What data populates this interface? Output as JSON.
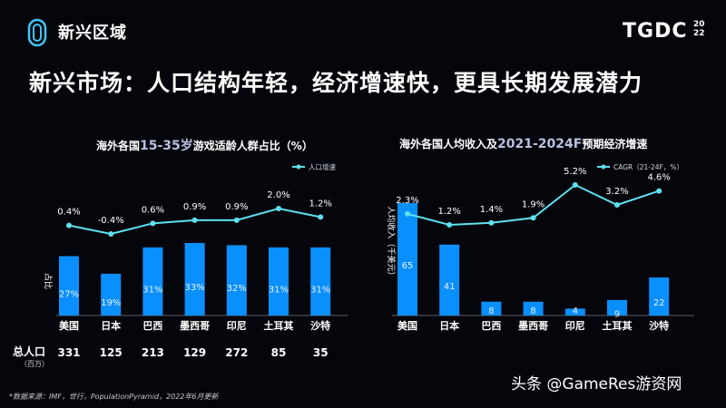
{
  "header": {
    "section_title": "新兴区域",
    "brand": "TGDC",
    "brand_year_top": "20",
    "brand_year_bottom": "22",
    "headline": "新兴市场：人口结构年轻，经济增速快，更具长期发展潜力"
  },
  "colors": {
    "bar": "#0a8fff",
    "line": "#5ee1ef",
    "background": "#05060c"
  },
  "chart_data": [
    {
      "type": "bar",
      "title_prefix": "海外各国",
      "title_highlight": "15-35岁",
      "title_suffix": "游戏适龄人群占比（%）",
      "ylabel": "占比",
      "categories": [
        "美国",
        "日本",
        "巴西",
        "墨西哥",
        "印尼",
        "土耳其",
        "沙特"
      ],
      "series": [
        {
          "name": "占比",
          "values": [
            27,
            19,
            31,
            33,
            32,
            31,
            31
          ],
          "value_labels": [
            "27%",
            "19%",
            "31%",
            "33%",
            "32%",
            "31%",
            "31%"
          ]
        },
        {
          "name": "人口增速",
          "type": "line",
          "values": [
            0.4,
            -0.4,
            0.6,
            0.9,
            0.9,
            2.0,
            1.2
          ],
          "value_labels": [
            "0.4%",
            "-0.4%",
            "0.6%",
            "0.9%",
            "0.9%",
            "2.0%",
            "1.2%"
          ]
        }
      ],
      "legend": "人口增速",
      "population_label": "总人口",
      "population_unit": "（百万）",
      "population": [
        "331",
        "125",
        "213",
        "129",
        "272",
        "85",
        "35"
      ]
    },
    {
      "type": "bar",
      "title_prefix": "海外各国人均收入及",
      "title_highlight": "2021-2024F",
      "title_suffix": "预期经济增速",
      "ylabel": "人均收入（千美元）",
      "categories": [
        "美国",
        "日本",
        "巴西",
        "墨西哥",
        "印尼",
        "土耳其",
        "沙特"
      ],
      "series": [
        {
          "name": "人均收入",
          "values": [
            65,
            41,
            8,
            8,
            4,
            9,
            22
          ],
          "value_labels": [
            "65",
            "41",
            "8",
            "8",
            "4",
            "9",
            "22"
          ]
        },
        {
          "name": "CAGR（21-24F，%）",
          "type": "line",
          "values": [
            2.3,
            1.2,
            1.4,
            1.9,
            5.2,
            3.2,
            4.6
          ],
          "value_labels": [
            "2.3%",
            "1.2%",
            "1.4%",
            "1.9%",
            "5.2%",
            "3.2%",
            "4.6%"
          ]
        }
      ],
      "legend": "CAGR（21-24F，%）"
    }
  ],
  "footnote": "*数据来源：IMF，世行，PopulationPyramid，2022年6月更新",
  "watermark": "头条 @GameRes游资网"
}
